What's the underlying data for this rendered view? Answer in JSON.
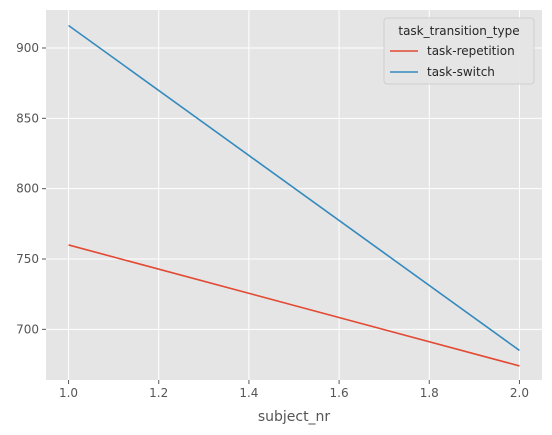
{
  "chart_data": {
    "type": "line",
    "x": [
      1.0,
      2.0
    ],
    "series": [
      {
        "name": "task-repetition",
        "values": [
          760,
          674
        ],
        "color": "#E24A33"
      },
      {
        "name": "task-switch",
        "values": [
          916,
          685
        ],
        "color": "#348ABD"
      }
    ],
    "xlabel": "subject_nr",
    "ylabel": "",
    "xlim": [
      0.95,
      2.05
    ],
    "ylim": [
      664,
      927
    ],
    "xticks": [
      1.0,
      1.2,
      1.4,
      1.6,
      1.8,
      2.0
    ],
    "xtick_labels": [
      "1.0",
      "1.2",
      "1.4",
      "1.6",
      "1.8",
      "2.0"
    ],
    "yticks": [
      700,
      750,
      800,
      850,
      900
    ],
    "ytick_labels": [
      "700",
      "750",
      "800",
      "850",
      "900"
    ],
    "grid": true,
    "background": "#E5E5E5",
    "legend": {
      "title": "task_transition_type",
      "placement": "top-right"
    }
  }
}
